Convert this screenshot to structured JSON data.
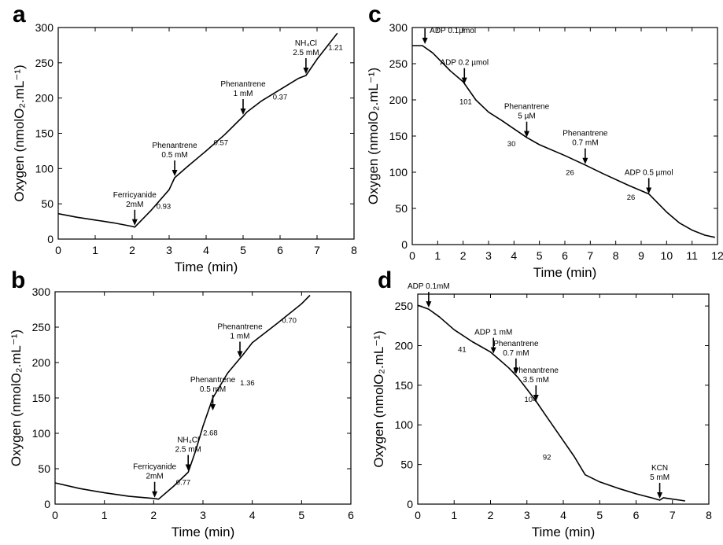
{
  "chart_data": [
    {
      "panel": "a",
      "type": "line",
      "xlabel": "Time (min)",
      "ylabel": "Oxygen (nmolO₂.mL⁻¹)",
      "xlim": [
        0,
        8
      ],
      "ylim": [
        0,
        300
      ],
      "xticks": [
        "0",
        "1",
        "2",
        "3",
        "4",
        "5",
        "6",
        "7",
        "8"
      ],
      "yticks": [
        "0",
        "50",
        "100",
        "150",
        "200",
        "250",
        "300"
      ],
      "series": [
        {
          "values": [
            [
              0,
              36
            ],
            [
              0.5,
              31
            ],
            [
              1,
              27
            ],
            [
              1.5,
              23
            ],
            [
              2,
              18
            ],
            [
              2.07,
              17
            ],
            [
              2.5,
              40
            ],
            [
              3,
              70
            ],
            [
              3.15,
              87
            ],
            [
              3.5,
              103
            ],
            [
              4,
              125
            ],
            [
              4.5,
              148
            ],
            [
              5,
              174
            ],
            [
              5.1,
              180
            ],
            [
              5.5,
              196
            ],
            [
              6,
              212
            ],
            [
              6.5,
              228
            ],
            [
              6.7,
              232
            ],
            [
              7,
              255
            ],
            [
              7.55,
              292
            ]
          ]
        }
      ],
      "annotations": [
        {
          "lines": [
            "Ferricyanide",
            "2mM"
          ],
          "x": 2.07,
          "y": 17
        },
        {
          "lines": [
            "Phenantrene",
            "0.5 mM"
          ],
          "x": 3.15,
          "y": 87
        },
        {
          "lines": [
            "Phenantrene",
            "1 mM"
          ],
          "x": 5.0,
          "y": 174
        },
        {
          "lines": [
            "NH₄Cl",
            "2.5 mM"
          ],
          "x": 6.7,
          "y": 232
        }
      ],
      "rates": [
        {
          "text": "0.93",
          "x": 2.85,
          "y": 43
        },
        {
          "text": "0.57",
          "x": 4.4,
          "y": 133
        },
        {
          "text": "0.37",
          "x": 6.0,
          "y": 198
        },
        {
          "text": "1.21",
          "x": 7.5,
          "y": 268
        }
      ],
      "grid": false
    },
    {
      "panel": "b",
      "type": "line",
      "xlabel": "Time (min)",
      "ylabel": "Oxygen (nmolO₂.mL⁻¹)",
      "xlim": [
        0,
        6
      ],
      "ylim": [
        0,
        300
      ],
      "xticks": [
        "0",
        "1",
        "2",
        "3",
        "4",
        "5",
        "6"
      ],
      "yticks": [
        "0",
        "50",
        "100",
        "150",
        "200",
        "250",
        "300"
      ],
      "series": [
        {
          "values": [
            [
              0,
              30
            ],
            [
              0.5,
              22
            ],
            [
              1,
              16
            ],
            [
              1.5,
              11
            ],
            [
              2,
              8
            ],
            [
              2.1,
              7
            ],
            [
              2.4,
              25
            ],
            [
              2.7,
              45
            ],
            [
              2.85,
              75
            ],
            [
              3,
              110
            ],
            [
              3.2,
              150
            ],
            [
              3.5,
              185
            ],
            [
              3.8,
              210
            ],
            [
              4,
              228
            ],
            [
              4.5,
              255
            ],
            [
              5,
              283
            ],
            [
              5.17,
              295
            ]
          ]
        }
      ],
      "annotations": [
        {
          "lines": [
            "Ferricyanide",
            "2mM"
          ],
          "x": 2.02,
          "y": 7
        },
        {
          "lines": [
            "NH₄Cl",
            "2.5 mM"
          ],
          "x": 2.7,
          "y": 45
        },
        {
          "lines": [
            "Phenantrene",
            "0.5 mM"
          ],
          "x": 3.2,
          "y": 130
        },
        {
          "lines": [
            "Phenantrene",
            "1 mM"
          ],
          "x": 3.75,
          "y": 205
        }
      ],
      "rates": [
        {
          "text": "0.77",
          "x": 2.6,
          "y": 27
        },
        {
          "text": "2.68",
          "x": 3.15,
          "y": 97
        },
        {
          "text": "1.36",
          "x": 3.9,
          "y": 168
        },
        {
          "text": "0.70",
          "x": 4.75,
          "y": 256
        }
      ],
      "grid": false
    },
    {
      "panel": "c",
      "type": "line",
      "xlabel": "Time (min)",
      "ylabel": "Oxygen (nmolO₂.mL⁻¹)",
      "xlim": [
        0,
        12
      ],
      "ylim": [
        0,
        300
      ],
      "xticks": [
        "0",
        "1",
        "2",
        "3",
        "4",
        "5",
        "6",
        "7",
        "8",
        "9",
        "10",
        "11",
        "12"
      ],
      "yticks": [
        "0",
        "50",
        "100",
        "150",
        "200",
        "250",
        "300"
      ],
      "series": [
        {
          "values": [
            [
              0,
              275
            ],
            [
              0.4,
              275
            ],
            [
              0.8,
              265
            ],
            [
              1.5,
              240
            ],
            [
              2,
              225
            ],
            [
              2.5,
              200
            ],
            [
              3,
              183
            ],
            [
              3.5,
              172
            ],
            [
              4,
              160
            ],
            [
              4.5,
              148
            ],
            [
              5,
              138
            ],
            [
              6,
              123
            ],
            [
              6.8,
              110
            ],
            [
              7.5,
              98
            ],
            [
              8.5,
              82
            ],
            [
              9.3,
              70
            ],
            [
              10,
              45
            ],
            [
              10.5,
              30
            ],
            [
              11,
              20
            ],
            [
              11.5,
              13
            ],
            [
              11.9,
              10
            ]
          ]
        }
      ],
      "annotations": [
        {
          "lines": [
            "ADP 0.1µmol"
          ],
          "x": 0.5,
          "y": 275,
          "textSide": "right"
        },
        {
          "lines": [
            "ADP 0.2 µmol"
          ],
          "x": 2.05,
          "y": 220
        },
        {
          "lines": [
            "Phenantrene",
            "5 µM"
          ],
          "x": 4.5,
          "y": 146
        },
        {
          "lines": [
            "Phenantrene",
            "0.7 mM"
          ],
          "x": 6.8,
          "y": 109
        },
        {
          "lines": [
            "ADP 0.5 µmol"
          ],
          "x": 9.3,
          "y": 68
        }
      ],
      "rates": [
        {
          "text": "101",
          "x": 2.1,
          "y": 194
        },
        {
          "text": "30",
          "x": 3.9,
          "y": 136
        },
        {
          "text": "26",
          "x": 6.2,
          "y": 96
        },
        {
          "text": "26",
          "x": 8.6,
          "y": 62
        }
      ],
      "grid": false
    },
    {
      "panel": "d",
      "type": "line",
      "xlabel": "Time (min)",
      "ylabel": "Oxygen (nmolO₂.mL⁻¹)",
      "xlim": [
        0,
        8
      ],
      "ylim": [
        0,
        265
      ],
      "xticks": [
        "0",
        "1",
        "2",
        "3",
        "4",
        "5",
        "6",
        "7",
        "8"
      ],
      "yticks": [
        "0",
        "50",
        "100",
        "150",
        "200",
        "250"
      ],
      "series": [
        {
          "values": [
            [
              0,
              251
            ],
            [
              0.3,
              246
            ],
            [
              0.6,
              236
            ],
            [
              1,
              220
            ],
            [
              1.5,
              205
            ],
            [
              2,
              192
            ],
            [
              2.1,
              188
            ],
            [
              2.5,
              172
            ],
            [
              2.75,
              160
            ],
            [
              3,
              145
            ],
            [
              3.25,
              130
            ],
            [
              3.5,
              113
            ],
            [
              4,
              80
            ],
            [
              4.3,
              60
            ],
            [
              4.6,
              37
            ],
            [
              5,
              28
            ],
            [
              5.5,
              20
            ],
            [
              6,
              13
            ],
            [
              6.5,
              7
            ],
            [
              6.65,
              5
            ],
            [
              6.75,
              8
            ],
            [
              6.9,
              7
            ],
            [
              7.35,
              4
            ]
          ]
        }
      ],
      "annotations": [
        {
          "lines": [
            "ADP 0.1mM"
          ],
          "x": 0.3,
          "y": 246
        },
        {
          "lines": [
            "ADP 1 mM"
          ],
          "x": 2.08,
          "y": 188
        },
        {
          "lines": [
            "Phenantrene",
            "0.7 mM"
          ],
          "x": 2.7,
          "y": 162
        },
        {
          "lines": [
            "Phenantrene",
            "3.5 mM"
          ],
          "x": 3.25,
          "y": 128
        },
        {
          "lines": [
            "KCN",
            "5 mM"
          ],
          "x": 6.65,
          "y": 5
        }
      ],
      "rates": [
        {
          "text": "41",
          "x": 1.22,
          "y": 192
        },
        {
          "text": "104",
          "x": 3.1,
          "y": 129
        },
        {
          "text": "92",
          "x": 3.55,
          "y": 56
        }
      ],
      "grid": false
    }
  ]
}
